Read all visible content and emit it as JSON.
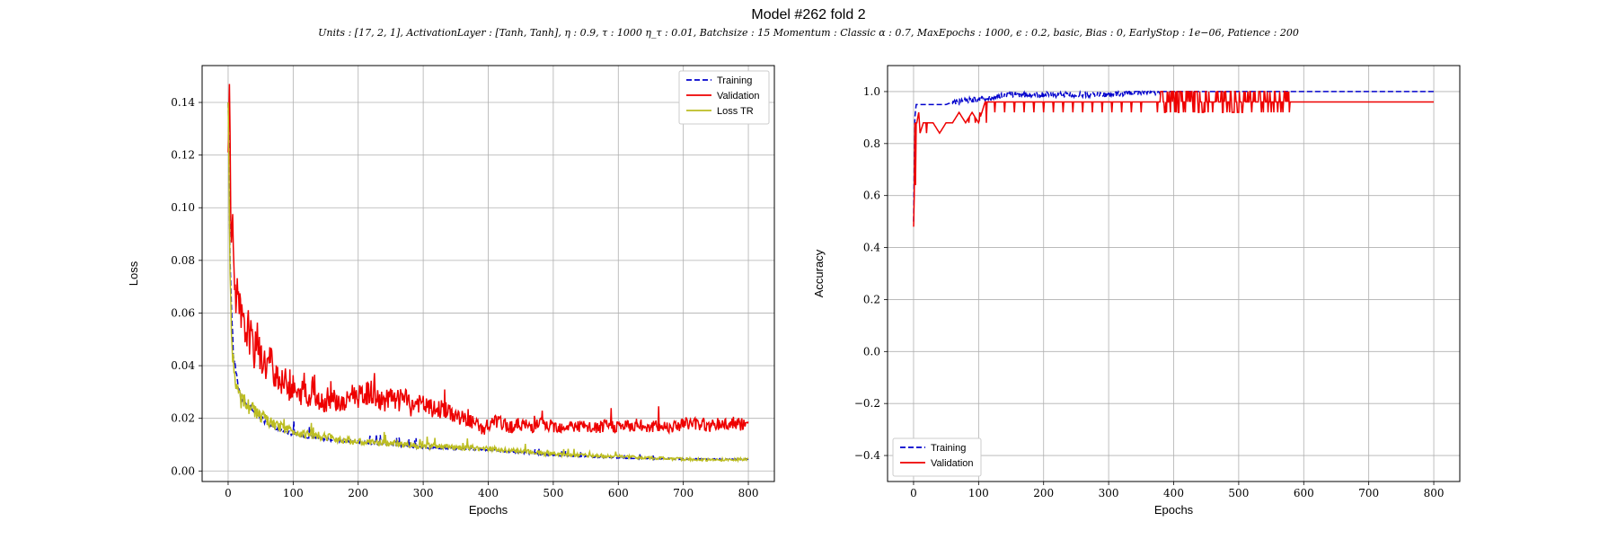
{
  "figure": {
    "title": "Model #262 fold 2",
    "subtitle": "Units : [17, 2, 1], ActivationLayer : [Tanh, Tanh], η : 0.9, τ : 1000 η_τ : 0.01, Batchsize : 15 Momentum : Classic α : 0.7, MaxEpochs : 1000, ϵ : 0.2, basic, Bias : 0, EarlyStop : 1e−06, Patience : 200"
  },
  "colors": {
    "training": "#0000cc",
    "validation": "#ee0000",
    "loss_tr": "#bcbd22",
    "grid": "#b0b0b0"
  },
  "chart_data": [
    {
      "type": "line",
      "xlabel": "Epochs",
      "ylabel": "Loss",
      "xlim": [
        -40,
        840
      ],
      "ylim": [
        -0.004,
        0.154
      ],
      "xticks": [
        0,
        100,
        200,
        300,
        400,
        500,
        600,
        700,
        800
      ],
      "yticks": [
        0.0,
        0.02,
        0.04,
        0.06,
        0.08,
        0.1,
        0.12,
        0.14
      ],
      "ytick_labels": [
        "0.00",
        "0.02",
        "0.04",
        "0.06",
        "0.08",
        "0.10",
        "0.12",
        "0.14"
      ],
      "grid": true,
      "legend": "top-right",
      "series": [
        {
          "name": "Training",
          "style": "dashed",
          "color_key": "training",
          "x": [
            0,
            1,
            2,
            3,
            5,
            8,
            10,
            15,
            20,
            30,
            50,
            75,
            100,
            150,
            200,
            300,
            400,
            500,
            600,
            700,
            800
          ],
          "y": [
            0.14,
            0.125,
            0.1,
            0.08,
            0.06,
            0.045,
            0.04,
            0.032,
            0.028,
            0.025,
            0.02,
            0.016,
            0.014,
            0.012,
            0.011,
            0.009,
            0.008,
            0.006,
            0.005,
            0.0045,
            0.0045
          ]
        },
        {
          "name": "Validation",
          "style": "solid",
          "color_key": "validation",
          "x": [
            0,
            2,
            4,
            6,
            10,
            15,
            20,
            25,
            30,
            35,
            40,
            45,
            50,
            55,
            60,
            65,
            70,
            75,
            80,
            85,
            90,
            95,
            100,
            105,
            110,
            115,
            120,
            125,
            130,
            135,
            140,
            150,
            160,
            170,
            180,
            190,
            200,
            210,
            220,
            230,
            240,
            250,
            260,
            270,
            280,
            290,
            300,
            310,
            320,
            330,
            340,
            350,
            360,
            370,
            380,
            390,
            400,
            410,
            420,
            430,
            440,
            450,
            460,
            470,
            480,
            490,
            500,
            520,
            540,
            560,
            580,
            600,
            620,
            640,
            660,
            680,
            700,
            720,
            740,
            760,
            780,
            800
          ],
          "y": [
            0.121,
            0.147,
            0.11,
            0.092,
            0.075,
            0.062,
            0.058,
            0.052,
            0.055,
            0.05,
            0.045,
            0.048,
            0.043,
            0.041,
            0.04,
            0.043,
            0.037,
            0.038,
            0.034,
            0.033,
            0.035,
            0.03,
            0.032,
            0.029,
            0.028,
            0.031,
            0.026,
            0.028,
            0.034,
            0.025,
            0.027,
            0.026,
            0.028,
            0.026,
            0.025,
            0.03,
            0.028,
            0.029,
            0.03,
            0.027,
            0.026,
            0.028,
            0.025,
            0.029,
            0.024,
            0.026,
            0.025,
            0.024,
            0.023,
            0.024,
            0.022,
            0.021,
            0.02,
            0.019,
            0.018,
            0.016,
            0.016,
            0.019,
            0.018,
            0.017,
            0.017,
            0.018,
            0.017,
            0.017,
            0.018,
            0.017,
            0.017,
            0.017,
            0.017,
            0.016,
            0.017,
            0.017,
            0.017,
            0.017,
            0.017,
            0.017,
            0.018,
            0.018,
            0.017,
            0.018,
            0.018,
            0.017
          ]
        },
        {
          "name": "Loss TR",
          "style": "solid",
          "color_key": "loss_tr",
          "x": [
            0,
            1,
            2,
            3,
            5,
            8,
            10,
            12,
            15,
            20,
            30,
            40,
            50,
            60,
            75,
            90,
            100,
            120,
            150,
            175,
            200,
            250,
            300,
            350,
            400,
            450,
            500,
            550,
            600,
            650,
            700,
            750,
            800
          ],
          "y": [
            0.14,
            0.12,
            0.095,
            0.075,
            0.055,
            0.042,
            0.036,
            0.032,
            0.03,
            0.027,
            0.025,
            0.023,
            0.021,
            0.019,
            0.017,
            0.016,
            0.015,
            0.014,
            0.013,
            0.012,
            0.011,
            0.0105,
            0.0095,
            0.009,
            0.0085,
            0.0075,
            0.0065,
            0.006,
            0.0055,
            0.005,
            0.0045,
            0.0042,
            0.0045
          ]
        }
      ]
    },
    {
      "type": "line",
      "xlabel": "Epochs",
      "ylabel": "Accuracy",
      "xlim": [
        -40,
        840
      ],
      "ylim": [
        -0.5,
        1.1
      ],
      "xticks": [
        0,
        100,
        200,
        300,
        400,
        500,
        600,
        700,
        800
      ],
      "yticks": [
        -0.4,
        -0.2,
        0.0,
        0.2,
        0.4,
        0.6,
        0.8,
        1.0
      ],
      "ytick_labels": [
        "−0.4",
        "−0.2",
        "0.0",
        "0.2",
        "0.4",
        "0.6",
        "0.8",
        "1.0"
      ],
      "grid": true,
      "legend": "bottom-left",
      "series": [
        {
          "name": "Training",
          "style": "dashed",
          "color_key": "training",
          "x": [
            0,
            2,
            4,
            8,
            50,
            60,
            90,
            120,
            150,
            200,
            250,
            300,
            350,
            380,
            800
          ],
          "y": [
            0.5,
            0.9,
            0.95,
            0.95,
            0.95,
            0.96,
            0.97,
            0.98,
            0.99,
            0.99,
            0.99,
            0.99,
            1.0,
            1.0,
            1.0
          ],
          "noise_range": [
            60,
            380
          ],
          "noise_amp": 0.02
        },
        {
          "name": "Validation",
          "style": "solid",
          "color_key": "validation",
          "x": [
            0,
            1,
            2,
            3,
            4,
            5,
            8,
            10,
            15,
            20,
            30,
            40,
            50,
            60,
            70,
            80,
            90,
            100,
            110,
            120,
            130,
            150,
            200,
            300,
            370,
            380,
            580,
            590,
            800
          ],
          "y": [
            0.48,
            0.6,
            0.88,
            0.64,
            0.88,
            0.88,
            0.92,
            0.84,
            0.88,
            0.88,
            0.88,
            0.84,
            0.88,
            0.88,
            0.92,
            0.88,
            0.92,
            0.88,
            0.96,
            0.96,
            0.96,
            0.96,
            0.96,
            0.96,
            0.96,
            0.96,
            0.96,
            0.96,
            0.96
          ],
          "dips": [
            [
              20,
              0.84
            ],
            [
              40,
              0.84
            ],
            [
              60,
              0.88
            ],
            [
              85,
              0.88
            ],
            [
              95,
              0.88
            ],
            [
              102,
              0.92
            ],
            [
              112,
              0.88
            ],
            [
              125,
              0.92
            ],
            [
              140,
              0.92
            ],
            [
              155,
              0.92
            ],
            [
              170,
              0.92
            ],
            [
              185,
              0.92
            ],
            [
              200,
              0.92
            ],
            [
              215,
              0.92
            ],
            [
              230,
              0.92
            ],
            [
              245,
              0.92
            ],
            [
              260,
              0.92
            ],
            [
              275,
              0.92
            ],
            [
              290,
              0.92
            ],
            [
              305,
              0.92
            ],
            [
              320,
              0.92
            ],
            [
              335,
              0.92
            ],
            [
              350,
              0.92
            ],
            [
              375,
              0.92
            ],
            [
              395,
              0.92
            ],
            [
              415,
              0.92
            ],
            [
              430,
              0.92
            ],
            [
              445,
              0.92
            ],
            [
              460,
              0.92
            ],
            [
              475,
              0.92
            ],
            [
              490,
              0.92
            ],
            [
              505,
              0.92
            ],
            [
              520,
              0.92
            ],
            [
              535,
              0.92
            ],
            [
              550,
              0.92
            ],
            [
              565,
              0.92
            ],
            [
              578,
              0.92
            ]
          ],
          "peaks": [
            [
              380,
              1.0
            ],
            [
              390,
              1.0
            ],
            [
              400,
              1.0
            ],
            [
              410,
              1.0
            ],
            [
              420,
              1.0
            ],
            [
              435,
              1.0
            ],
            [
              450,
              1.0
            ],
            [
              465,
              1.0
            ],
            [
              480,
              1.0
            ],
            [
              495,
              1.0
            ],
            [
              510,
              1.0
            ],
            [
              525,
              1.0
            ],
            [
              540,
              1.0
            ],
            [
              555,
              1.0
            ],
            [
              570,
              1.0
            ]
          ]
        }
      ]
    }
  ]
}
